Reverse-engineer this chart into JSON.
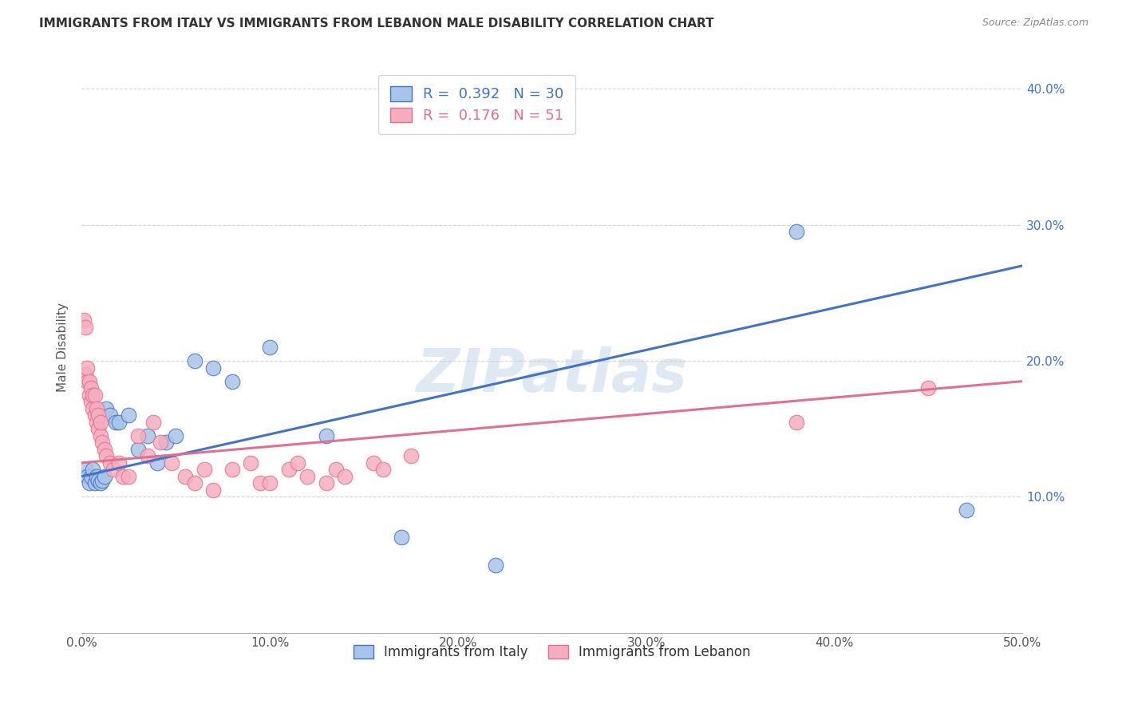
{
  "title": "IMMIGRANTS FROM ITALY VS IMMIGRANTS FROM LEBANON MALE DISABILITY CORRELATION CHART",
  "source": "Source: ZipAtlas.com",
  "ylabel": "Male Disability",
  "xlim": [
    0.0,
    0.5
  ],
  "ylim": [
    0.0,
    0.42
  ],
  "xticks": [
    0.0,
    0.1,
    0.2,
    0.3,
    0.4,
    0.5
  ],
  "xtick_labels": [
    "0.0%",
    "10.0%",
    "20.0%",
    "30.0%",
    "40.0%",
    "50.0%"
  ],
  "yticks": [
    0.1,
    0.2,
    0.3,
    0.4
  ],
  "ytick_labels": [
    "10.0%",
    "20.0%",
    "30.0%",
    "40.0%"
  ],
  "italy_R": 0.392,
  "italy_N": 30,
  "lebanon_R": 0.176,
  "lebanon_N": 51,
  "italy_color": "#a8c4e8",
  "lebanon_color": "#f5aec0",
  "italy_line_color": "#4472c4",
  "lebanon_line_color": "#e07090",
  "watermark": "ZIPatlas",
  "italy_x": [
    0.002,
    0.003,
    0.004,
    0.005,
    0.006,
    0.007,
    0.008,
    0.009,
    0.01,
    0.011,
    0.012,
    0.013,
    0.015,
    0.018,
    0.02,
    0.025,
    0.03,
    0.035,
    0.04,
    0.045,
    0.05,
    0.06,
    0.07,
    0.08,
    0.1,
    0.13,
    0.17,
    0.22,
    0.38,
    0.47
  ],
  "italy_y": [
    0.12,
    0.115,
    0.11,
    0.115,
    0.12,
    0.11,
    0.115,
    0.112,
    0.11,
    0.112,
    0.115,
    0.165,
    0.16,
    0.155,
    0.155,
    0.16,
    0.135,
    0.145,
    0.125,
    0.14,
    0.145,
    0.2,
    0.195,
    0.185,
    0.21,
    0.145,
    0.07,
    0.05,
    0.295,
    0.09
  ],
  "lebanon_x": [
    0.001,
    0.002,
    0.002,
    0.003,
    0.003,
    0.004,
    0.004,
    0.005,
    0.005,
    0.006,
    0.006,
    0.007,
    0.007,
    0.008,
    0.008,
    0.009,
    0.009,
    0.01,
    0.01,
    0.011,
    0.012,
    0.013,
    0.015,
    0.017,
    0.02,
    0.022,
    0.025,
    0.03,
    0.035,
    0.038,
    0.042,
    0.048,
    0.055,
    0.06,
    0.065,
    0.07,
    0.08,
    0.09,
    0.095,
    0.1,
    0.11,
    0.115,
    0.12,
    0.13,
    0.135,
    0.14,
    0.155,
    0.16,
    0.175,
    0.38,
    0.45
  ],
  "lebanon_y": [
    0.23,
    0.225,
    0.19,
    0.185,
    0.195,
    0.175,
    0.185,
    0.17,
    0.18,
    0.165,
    0.175,
    0.16,
    0.175,
    0.155,
    0.165,
    0.15,
    0.16,
    0.145,
    0.155,
    0.14,
    0.135,
    0.13,
    0.125,
    0.12,
    0.125,
    0.115,
    0.115,
    0.145,
    0.13,
    0.155,
    0.14,
    0.125,
    0.115,
    0.11,
    0.12,
    0.105,
    0.12,
    0.125,
    0.11,
    0.11,
    0.12,
    0.125,
    0.115,
    0.11,
    0.12,
    0.115,
    0.125,
    0.12,
    0.13,
    0.155,
    0.18
  ],
  "italy_line_x": [
    0.0,
    0.5
  ],
  "italy_line_y": [
    0.115,
    0.27
  ],
  "lebanon_line_x": [
    0.0,
    0.5
  ],
  "lebanon_line_y": [
    0.125,
    0.185
  ]
}
